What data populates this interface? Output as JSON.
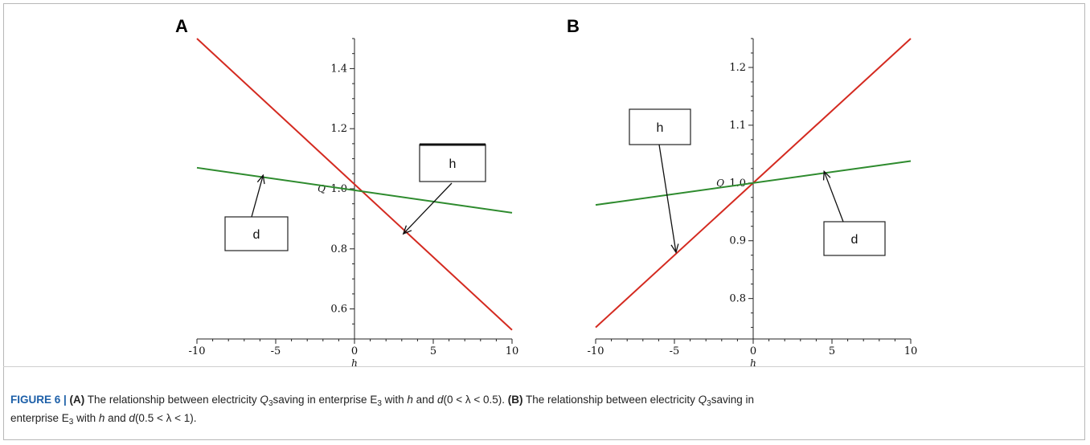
{
  "charts": [
    {
      "panel": "A",
      "chart_data": {
        "type": "line",
        "xlabel": "h",
        "ylabel": "Q",
        "xlim": [
          -10,
          10
        ],
        "ylim": [
          0.5,
          1.5
        ],
        "xticks": [
          -10,
          -5,
          0,
          5,
          10
        ],
        "xtick_labels": [
          "-10",
          "-5",
          "0",
          "5",
          "10"
        ],
        "yticks": [
          0.6,
          0.8,
          1.0,
          1.2,
          1.4
        ],
        "ytick_labels": [
          "0.6",
          "0.8",
          "1.0",
          "1.2",
          "1.4"
        ],
        "series": [
          {
            "color": "#d42a20",
            "x": [
              -10,
              10
            ],
            "y": [
              1.5,
              0.53
            ]
          },
          {
            "color": "#2e8b2e",
            "x": [
              -10,
              10
            ],
            "y": [
              1.07,
              0.92
            ]
          }
        ],
        "callouts": [
          {
            "text": "h",
            "series": 0,
            "arrow_to": [
              3.1,
              0.85
            ]
          },
          {
            "text": "d",
            "series": 1,
            "arrow_to": [
              -5.8,
              1.045
            ]
          }
        ]
      }
    },
    {
      "panel": "B",
      "chart_data": {
        "type": "line",
        "xlabel": "h",
        "ylabel": "Q",
        "xlim": [
          -10,
          10
        ],
        "ylim": [
          0.73,
          1.25
        ],
        "xticks": [
          -10,
          -5,
          0,
          5,
          10
        ],
        "xtick_labels": [
          "-10",
          "-5",
          "0",
          "5",
          "10"
        ],
        "yticks": [
          0.8,
          0.9,
          1.0,
          1.1,
          1.2
        ],
        "ytick_labels": [
          "0.8",
          "0.9",
          "1.0",
          "1.1",
          "1.2"
        ],
        "series": [
          {
            "color": "#d42a20",
            "x": [
              -10,
              10
            ],
            "y": [
              0.75,
              1.25
            ]
          },
          {
            "color": "#2e8b2e",
            "x": [
              -10,
              10
            ],
            "y": [
              0.962,
              1.038
            ]
          }
        ],
        "callouts": [
          {
            "text": "h",
            "series": 0,
            "arrow_to": [
              -4.9,
              0.88
            ]
          },
          {
            "text": "d",
            "series": 1,
            "arrow_to": [
              4.5,
              1.02
            ]
          }
        ]
      }
    }
  ],
  "caption": {
    "label": "FIGURE 6 | ",
    "part_a_label": "(A)",
    "part_a_text_1": " The relationship between electricity ",
    "q_sym": "Q",
    "q_sub": "3",
    "part_a_text_2": "saving in enterprise E",
    "e_sub": "3",
    "part_a_text_3": " with ",
    "h_sym": "h",
    "and_text": " and ",
    "d_sym": "d",
    "range_a": "(0 < λ < 0.5). ",
    "part_b_label": "(B)",
    "part_b_text_1": " The relationship between electricity ",
    "part_b_text_2": "saving in",
    "part_b_text_3": "enterprise E",
    "part_b_text_4": " with ",
    "range_b": "(0.5 < λ < 1)."
  }
}
